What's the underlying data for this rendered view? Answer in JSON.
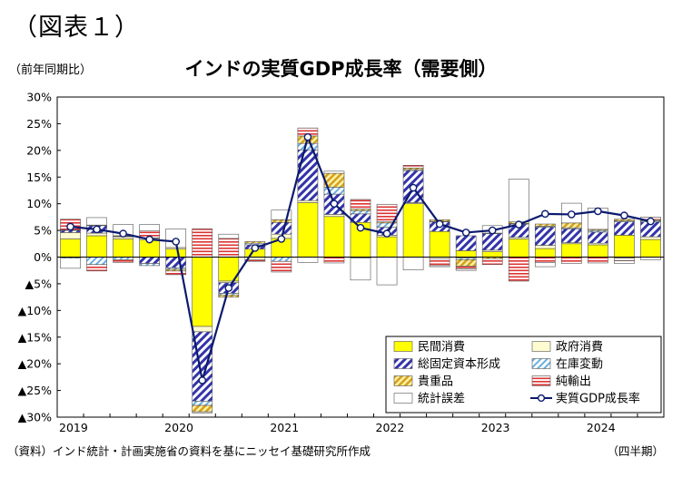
{
  "page": {
    "figure_number": "（図表１）",
    "unit_label": "（前年同期比）",
    "source_note": "（資料）インド統計・計画実施省の資料を基にニッセイ基礎研究所作成",
    "period_note": "（四半期）"
  },
  "chart_data": {
    "type": "bar",
    "title": "インドの実質GDP成長率（需要側）",
    "ylim": [
      -30,
      30
    ],
    "y_tick_values": [
      30,
      25,
      20,
      15,
      10,
      5,
      0,
      -5,
      -10,
      -15,
      -20,
      -25,
      -30
    ],
    "y_tick_labels": [
      "30%",
      "25%",
      "20%",
      "15%",
      "10%",
      "5%",
      "0%",
      "▲5%",
      "▲10%",
      "▲15%",
      "▲20%",
      "▲25%",
      "▲30%"
    ],
    "year_labels": [
      {
        "label": "2019",
        "quarter_index": 0
      },
      {
        "label": "2020",
        "quarter_index": 4
      },
      {
        "label": "2021",
        "quarter_index": 8
      },
      {
        "label": "2022",
        "quarter_index": 12
      },
      {
        "label": "2023",
        "quarter_index": 16
      },
      {
        "label": "2024",
        "quarter_index": 20
      }
    ],
    "categories": [
      "2019Q1",
      "2019Q2",
      "2019Q3",
      "2019Q4",
      "2020Q1",
      "2020Q2",
      "2020Q3",
      "2020Q4",
      "2021Q1",
      "2021Q2",
      "2021Q3",
      "2021Q4",
      "2022Q1",
      "2022Q2",
      "2022Q3",
      "2022Q4",
      "2023Q1",
      "2023Q2",
      "2023Q3",
      "2023Q4",
      "2024Q1",
      "2024Q2",
      "2024Q3"
    ],
    "series": [
      {
        "name": "民間消費",
        "kind": "bar",
        "color": "#ffff00",
        "pattern": "solid",
        "values": [
          3.4,
          4.0,
          3.4,
          3.2,
          1.5,
          -13.0,
          -4.5,
          1.5,
          3.5,
          10.2,
          7.6,
          6.5,
          3.8,
          10.0,
          4.8,
          1.2,
          1.0,
          3.4,
          1.6,
          2.5,
          2.3,
          4.1,
          3.3
        ]
      },
      {
        "name": "政府消費",
        "kind": "bar",
        "color": "#ffff00",
        "pattern": "white",
        "values": [
          1.2,
          0.5,
          0.4,
          0.3,
          0.3,
          -1.0,
          -0.3,
          -0.5,
          0.8,
          0.4,
          0.4,
          -0.2,
          0.3,
          0.2,
          -0.3,
          -0.2,
          0.3,
          0.3,
          0.6,
          0.2,
          0.3,
          -0.2,
          0.5
        ]
      },
      {
        "name": "総固定資本形成",
        "kind": "bar",
        "color": "#3333aa",
        "pattern": "diag",
        "values": [
          0.4,
          1.4,
          0.1,
          -1.2,
          -2.0,
          -13.0,
          -2.0,
          0.8,
          2.2,
          9.5,
          3.8,
          1.6,
          1.5,
          6.0,
          1.8,
          2.8,
          3.1,
          2.5,
          3.4,
          2.6,
          2.1,
          2.5,
          2.8
        ]
      },
      {
        "name": "在庫変動",
        "kind": "bar",
        "color": "#6aaee0",
        "pattern": "diagblue",
        "values": [
          -0.2,
          -1.4,
          -0.5,
          -0.4,
          -0.3,
          -0.8,
          -0.3,
          0.3,
          -0.8,
          1.2,
          1.3,
          0.6,
          0.8,
          0.2,
          0.1,
          -0.3,
          0.1,
          0.1,
          0.2,
          0.2,
          0.3,
          0.2,
          0.2
        ]
      },
      {
        "name": "貴重品",
        "kind": "bar",
        "color": "#e8b83a",
        "pattern": "diaggold",
        "values": [
          0.1,
          0.1,
          0.1,
          0.1,
          -0.3,
          -1.2,
          -0.4,
          0.3,
          0.5,
          1.4,
          2.6,
          0.3,
          0.2,
          0.3,
          0.3,
          -1.2,
          -0.3,
          0.3,
          0.4,
          0.9,
          0.2,
          0.3,
          0.2
        ]
      },
      {
        "name": "純輸出",
        "kind": "bar",
        "color": "#dd3333",
        "pattern": "horiz",
        "values": [
          2.0,
          -1.2,
          -0.5,
          1.3,
          -0.7,
          5.3,
          3.5,
          -0.3,
          -2.0,
          1.5,
          -1.1,
          1.8,
          3.3,
          0.5,
          -1.3,
          -0.5,
          -1.1,
          -4.5,
          -1.0,
          -1.2,
          -1.1,
          -0.5,
          0.5
        ]
      },
      {
        "name": "統計誤差",
        "kind": "bar",
        "color": "#ffffff",
        "pattern": "outline",
        "values": [
          -1.9,
          1.4,
          2.1,
          1.2,
          3.5,
          -0.2,
          0.8,
          0.0,
          1.8,
          -1.0,
          0.4,
          -4.1,
          -5.2,
          -2.4,
          -0.2,
          -0.3,
          1.4,
          8.0,
          -0.8,
          3.7,
          4.0,
          -0.5,
          -0.5
        ]
      },
      {
        "name": "実質GDP成長率",
        "kind": "line",
        "color": "#0a1a6e",
        "values": [
          5.7,
          5.2,
          4.4,
          3.3,
          2.9,
          -23.1,
          -5.8,
          1.7,
          3.4,
          22.5,
          10.0,
          5.5,
          4.4,
          13.0,
          6.2,
          4.6,
          5.0,
          6.1,
          8.1,
          8.0,
          8.6,
          7.8,
          6.7
        ]
      }
    ],
    "legend_position": "bottom-right",
    "grid": false
  }
}
